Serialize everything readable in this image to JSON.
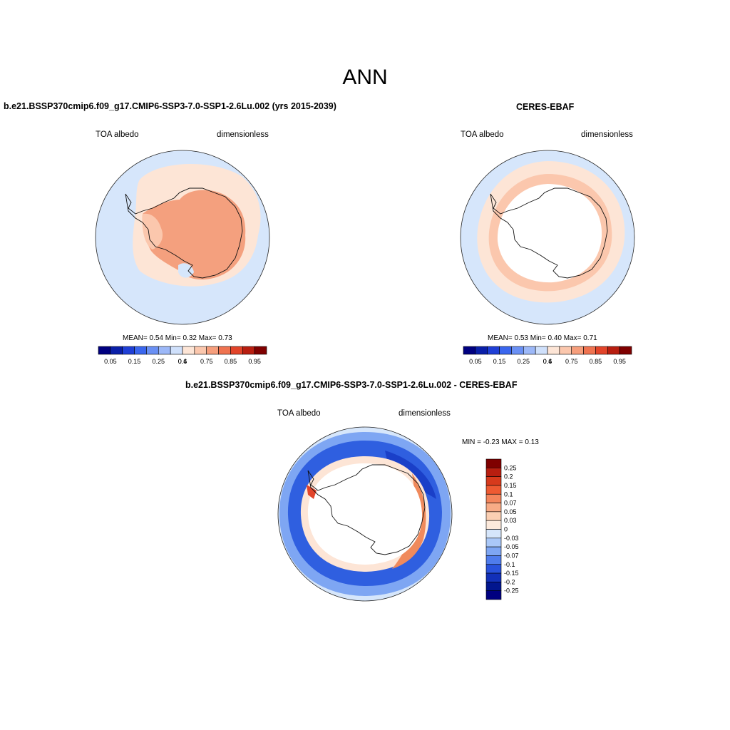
{
  "figure": {
    "title": "ANN"
  },
  "panels": {
    "model": {
      "title": "b.e21.BSSP370cmip6.f09_g17.CMIP6-SSP3-7.0-SSP1-2.6Lu.002 (yrs 2015-2039)",
      "variable": "TOA albedo",
      "units": "dimensionless",
      "stats_text": "MEAN=   0.54  Min=   0.32  Max=   0.73",
      "mean": 0.54,
      "min": 0.32,
      "max": 0.73
    },
    "obs": {
      "title": "CERES-EBAF",
      "variable": "TOA albedo",
      "units": "dimensionless",
      "stats_text": "MEAN=   0.53  Min=   0.40  Max=   0.71",
      "mean": 0.53,
      "min": 0.4,
      "max": 0.71
    },
    "diff": {
      "title": "b.e21.BSSP370cmip6.f09_g17.CMIP6-SSP3-7.0-SSP1-2.6Lu.002 - CERES-EBAF",
      "variable": "TOA albedo",
      "units": "dimensionless",
      "minmax_text": "MIN =  -0.23 MAX =   0.13",
      "min": -0.23,
      "max": 0.13
    }
  },
  "colorbars": {
    "abs": {
      "tick_labels": [
        "0.05",
        "0.15",
        "0.25",
        "0.4",
        "0.6",
        "0.75",
        "0.85",
        "0.95"
      ],
      "colors": [
        "#000080",
        "#0a1fa8",
        "#1f3fd6",
        "#3a66ee",
        "#6a90f4",
        "#9cb8f8",
        "#cfe0fb",
        "#fde5d6",
        "#fbc7ad",
        "#f69e7c",
        "#ef7350",
        "#e2442a",
        "#b81e10",
        "#7f0000"
      ]
    },
    "diff": {
      "tick_labels": [
        "0.25",
        "0.2",
        "0.15",
        "0.1",
        "0.07",
        "0.05",
        "0.03",
        "0",
        "-0.03",
        "-0.05",
        "-0.07",
        "-0.1",
        "-0.15",
        "-0.2",
        "-0.25"
      ],
      "colors": [
        "#7f0000",
        "#b81e10",
        "#d73a1c",
        "#ee5a32",
        "#f4855c",
        "#f8ab86",
        "#fbcfb3",
        "#fdeadc",
        "#d6e6fb",
        "#aac8f8",
        "#7ea6f3",
        "#4f7cec",
        "#2952dc",
        "#1230b8",
        "#02168e",
        "#000080"
      ]
    }
  },
  "colors": {
    "ocean_low": "#d6e6fb",
    "ice_pale": "#fde5d6",
    "ice_mid": "#fbc7ad",
    "ice_strong": "#f4a07e",
    "diff_blue": "#2f5fe0",
    "diff_deep": "#1a3fc8",
    "diff_pos": "#f08a5c"
  }
}
